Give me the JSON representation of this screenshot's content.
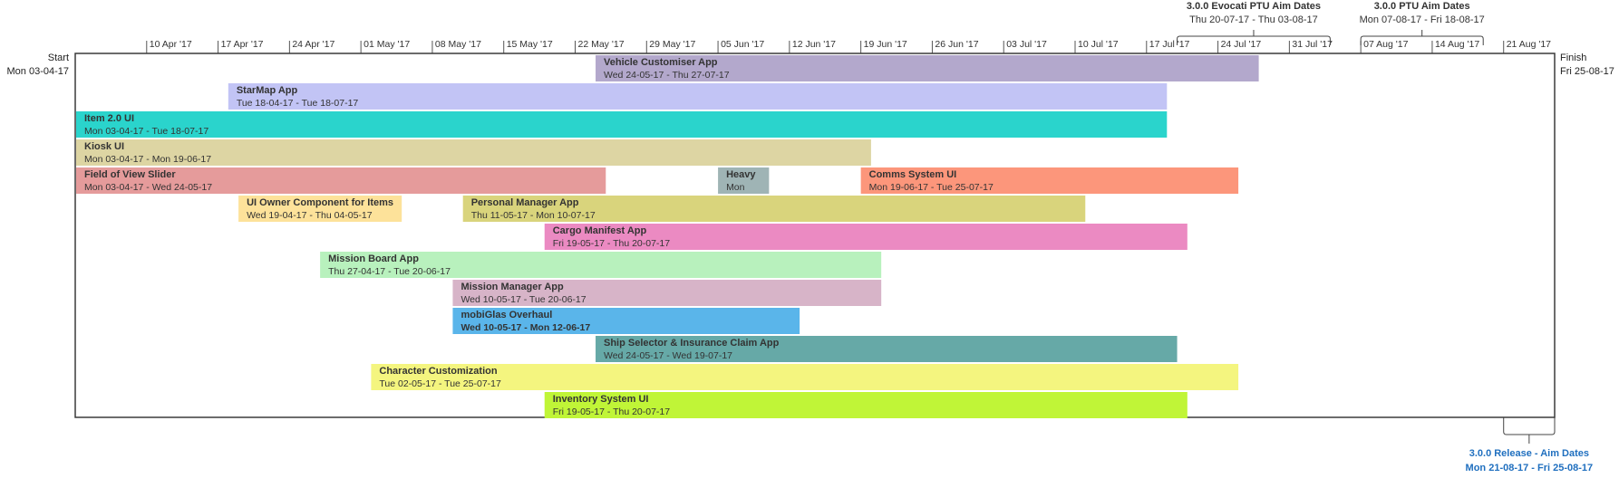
{
  "chart_data": {
    "type": "gantt",
    "start_label": "Start",
    "start_date_text": "Mon 03-04-17",
    "finish_label": "Finish",
    "finish_date_text": "Fri 25-08-17",
    "timeline_start": "2017-04-03",
    "timeline_end": "2017-08-25",
    "ticks": [
      {
        "date": "2017-04-10",
        "label": "10 Apr '17"
      },
      {
        "date": "2017-04-17",
        "label": "17 Apr '17"
      },
      {
        "date": "2017-04-24",
        "label": "24 Apr '17"
      },
      {
        "date": "2017-05-01",
        "label": "01 May '17"
      },
      {
        "date": "2017-05-08",
        "label": "08 May '17"
      },
      {
        "date": "2017-05-15",
        "label": "15 May '17"
      },
      {
        "date": "2017-05-22",
        "label": "22 May '17"
      },
      {
        "date": "2017-05-29",
        "label": "29 May '17"
      },
      {
        "date": "2017-06-05",
        "label": "05 Jun '17"
      },
      {
        "date": "2017-06-12",
        "label": "12 Jun '17"
      },
      {
        "date": "2017-06-19",
        "label": "19 Jun '17"
      },
      {
        "date": "2017-06-26",
        "label": "26 Jun '17"
      },
      {
        "date": "2017-07-03",
        "label": "03 Jul '17"
      },
      {
        "date": "2017-07-10",
        "label": "10 Jul '17"
      },
      {
        "date": "2017-07-17",
        "label": "17 Jul '17"
      },
      {
        "date": "2017-07-24",
        "label": "24 Jul '17"
      },
      {
        "date": "2017-07-31",
        "label": "31 Jul '17"
      },
      {
        "date": "2017-08-07",
        "label": "07 Aug '17"
      },
      {
        "date": "2017-08-14",
        "label": "14 Aug '17"
      },
      {
        "date": "2017-08-21",
        "label": "21 Aug '17"
      }
    ],
    "brackets": [
      {
        "title": "3.0.0 Evocati PTU Aim Dates",
        "dates": "Thu 20-07-17 - Thu 03-08-17",
        "start": "2017-07-20",
        "end": "2017-08-03",
        "position": "top",
        "color": "#333333"
      },
      {
        "title": "3.0.0 PTU Aim Dates",
        "dates": "Mon 07-08-17 - Fri 18-08-17",
        "start": "2017-08-07",
        "end": "2017-08-18",
        "position": "top",
        "color": "#333333"
      },
      {
        "title": "3.0.0 Release - Aim Dates",
        "dates": "Mon 21-08-17 - Fri 25-08-17",
        "start": "2017-08-21",
        "end": "2017-08-25",
        "position": "bottom",
        "color": "#1f6fbf"
      }
    ],
    "tasks": [
      {
        "name": "Vehicle Customiser App",
        "dates": "Wed 24-05-17 - Thu 27-07-17",
        "start": "2017-05-24",
        "end": "2017-07-27",
        "row": 0,
        "color": "#b3a8cc",
        "bold_dates": false
      },
      {
        "name": "StarMap App",
        "dates": "Tue 18-04-17 - Tue 18-07-17",
        "start": "2017-04-18",
        "end": "2017-07-18",
        "row": 1,
        "color": "#c2c4f5",
        "bold_dates": false
      },
      {
        "name": "Item 2.0 UI",
        "dates": "Mon 03-04-17 - Tue 18-07-17",
        "start": "2017-04-03",
        "end": "2017-07-18",
        "row": 2,
        "color": "#2ad4cc",
        "bold_dates": false
      },
      {
        "name": "Kiosk UI",
        "dates": "Mon 03-04-17 - Mon 19-06-17",
        "start": "2017-04-03",
        "end": "2017-06-19",
        "row": 3,
        "color": "#ddd5a3",
        "bold_dates": false
      },
      {
        "name": "Field of View Slider",
        "dates": "Mon 03-04-17 - Wed 24-05-17",
        "start": "2017-04-03",
        "end": "2017-05-24",
        "row": 4,
        "color": "#e59b9b",
        "bold_dates": false
      },
      {
        "name": "Heavy",
        "dates": "Mon",
        "start": "2017-06-05",
        "end": "2017-06-09",
        "row": 4,
        "color": "#9fb4b5",
        "bold_dates": false
      },
      {
        "name": "Comms System UI",
        "dates": "Mon 19-06-17 - Tue 25-07-17",
        "start": "2017-06-19",
        "end": "2017-07-25",
        "row": 4,
        "color": "#fc967b",
        "bold_dates": false
      },
      {
        "name": "UI Owner Component for Items",
        "dates": "Wed 19-04-17 - Thu 04-05-17",
        "start": "2017-04-19",
        "end": "2017-05-04",
        "row": 5,
        "color": "#fde29a",
        "bold_dates": false
      },
      {
        "name": "Personal Manager App",
        "dates": "Thu 11-05-17 - Mon 10-07-17",
        "start": "2017-05-11",
        "end": "2017-07-10",
        "row": 5,
        "color": "#d9d47c",
        "bold_dates": false
      },
      {
        "name": "Cargo Manifest App",
        "dates": "Fri 19-05-17 - Thu 20-07-17",
        "start": "2017-05-19",
        "end": "2017-07-20",
        "row": 6,
        "color": "#eb8ac2",
        "bold_dates": false
      },
      {
        "name": "Mission Board App",
        "dates": "Thu 27-04-17 - Tue 20-06-17",
        "start": "2017-04-27",
        "end": "2017-06-20",
        "row": 7,
        "color": "#b8f1bd",
        "bold_dates": false
      },
      {
        "name": "Mission Manager App",
        "dates": "Wed 10-05-17 - Tue 20-06-17",
        "start": "2017-05-10",
        "end": "2017-06-20",
        "row": 8,
        "color": "#d7b4c8",
        "bold_dates": false
      },
      {
        "name": "mobiGlas Overhaul",
        "dates": "Wed 10-05-17 - Mon 12-06-17",
        "start": "2017-05-10",
        "end": "2017-06-12",
        "row": 9,
        "color": "#5ab5ea",
        "bold_dates": true
      },
      {
        "name": "Ship Selector & Insurance Claim App",
        "dates": "Wed 24-05-17 - Wed 19-07-17",
        "start": "2017-05-24",
        "end": "2017-07-19",
        "row": 10,
        "color": "#66a9a7",
        "bold_dates": false
      },
      {
        "name": "Character Customization",
        "dates": "Tue 02-05-17 - Tue 25-07-17",
        "start": "2017-05-02",
        "end": "2017-07-25",
        "row": 11,
        "color": "#f4f57f",
        "bold_dates": false
      },
      {
        "name": "Inventory System UI",
        "dates": "Fri 19-05-17 - Thu 20-07-17",
        "start": "2017-05-19",
        "end": "2017-07-20",
        "row": 12,
        "color": "#c0f537",
        "bold_dates": false
      }
    ]
  }
}
